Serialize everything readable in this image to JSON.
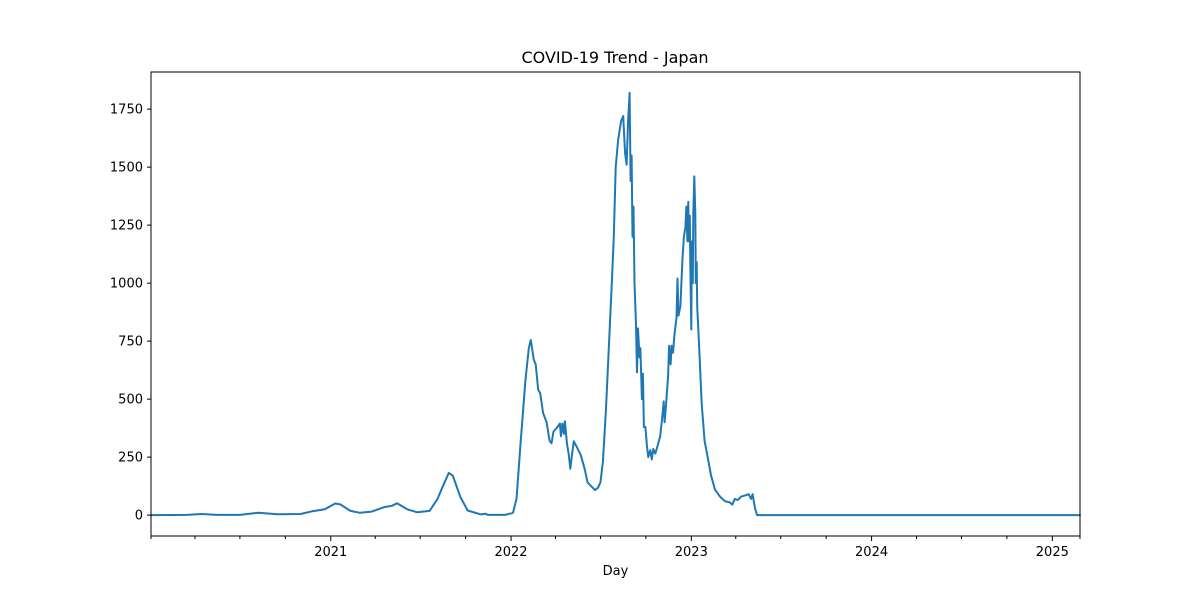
{
  "chart_data": {
    "type": "line",
    "title": "COVID-19 Trend - Japan",
    "xlabel": "Day",
    "ylabel": "",
    "x_axis": "date",
    "xlim": [
      "2020-01-03",
      "2025-02-26"
    ],
    "ylim": [
      -90,
      1910
    ],
    "grid": false,
    "legend": "none",
    "x_ticks": [
      {
        "date": "2021-01-01",
        "label": "2021"
      },
      {
        "date": "2022-01-01",
        "label": "2022"
      },
      {
        "date": "2023-01-01",
        "label": "2023"
      },
      {
        "date": "2024-01-01",
        "label": "2024"
      },
      {
        "date": "2025-01-01",
        "label": "2025"
      }
    ],
    "x_minor_ticks": [
      "2020-01-03",
      "2020-04-01",
      "2020-07-01",
      "2020-10-01",
      "2021-04-01",
      "2021-07-01",
      "2021-10-01",
      "2022-04-01",
      "2022-07-01",
      "2022-10-01",
      "2023-04-01",
      "2023-07-01",
      "2023-10-01",
      "2024-04-01",
      "2024-07-01",
      "2024-10-01",
      "2025-02-26"
    ],
    "y_ticks": [
      0,
      250,
      500,
      750,
      1000,
      1250,
      1500,
      1750
    ],
    "y_tick_labels": [
      "0",
      "250",
      "500",
      "750",
      "1000",
      "1250",
      "1500",
      "1750"
    ],
    "series": [
      {
        "color": "#1f77b4",
        "points": [
          [
            "2020-01-03",
            0
          ],
          [
            "2020-03-15",
            1
          ],
          [
            "2020-04-15",
            5
          ],
          [
            "2020-05-15",
            1
          ],
          [
            "2020-07-01",
            1
          ],
          [
            "2020-08-07",
            10
          ],
          [
            "2020-09-15",
            4
          ],
          [
            "2020-11-01",
            5
          ],
          [
            "2020-11-25",
            17
          ],
          [
            "2020-12-20",
            25
          ],
          [
            "2021-01-10",
            50
          ],
          [
            "2021-01-20",
            46
          ],
          [
            "2021-02-10",
            18
          ],
          [
            "2021-03-01",
            10
          ],
          [
            "2021-03-25",
            15
          ],
          [
            "2021-04-20",
            35
          ],
          [
            "2021-05-05",
            40
          ],
          [
            "2021-05-15",
            51
          ],
          [
            "2021-06-05",
            25
          ],
          [
            "2021-06-25",
            12
          ],
          [
            "2021-07-20",
            18
          ],
          [
            "2021-08-05",
            70
          ],
          [
            "2021-08-15",
            120
          ],
          [
            "2021-08-28",
            182
          ],
          [
            "2021-09-05",
            170
          ],
          [
            "2021-09-20",
            80
          ],
          [
            "2021-10-05",
            20
          ],
          [
            "2021-11-01",
            3
          ],
          [
            "2021-11-10",
            6
          ],
          [
            "2021-11-15",
            1
          ],
          [
            "2021-12-20",
            1
          ],
          [
            "2022-01-05",
            10
          ],
          [
            "2022-01-12",
            70
          ],
          [
            "2022-01-20",
            300
          ],
          [
            "2022-01-30",
            580
          ],
          [
            "2022-02-06",
            720
          ],
          [
            "2022-02-10",
            755
          ],
          [
            "2022-02-16",
            670
          ],
          [
            "2022-02-20",
            650
          ],
          [
            "2022-02-25",
            540
          ],
          [
            "2022-03-01",
            525
          ],
          [
            "2022-03-07",
            440
          ],
          [
            "2022-03-14",
            400
          ],
          [
            "2022-03-20",
            320
          ],
          [
            "2022-03-24",
            310
          ],
          [
            "2022-03-28",
            360
          ],
          [
            "2022-04-05",
            380
          ],
          [
            "2022-04-10",
            395
          ],
          [
            "2022-04-12",
            340
          ],
          [
            "2022-04-15",
            395
          ],
          [
            "2022-04-18",
            350
          ],
          [
            "2022-04-20",
            405
          ],
          [
            "2022-04-24",
            310
          ],
          [
            "2022-04-28",
            260
          ],
          [
            "2022-05-01",
            200
          ],
          [
            "2022-05-05",
            270
          ],
          [
            "2022-05-08",
            318
          ],
          [
            "2022-05-15",
            290
          ],
          [
            "2022-05-22",
            260
          ],
          [
            "2022-05-30",
            200
          ],
          [
            "2022-06-05",
            140
          ],
          [
            "2022-06-12",
            125
          ],
          [
            "2022-06-20",
            108
          ],
          [
            "2022-06-26",
            118
          ],
          [
            "2022-07-01",
            140
          ],
          [
            "2022-07-06",
            230
          ],
          [
            "2022-07-12",
            450
          ],
          [
            "2022-07-18",
            720
          ],
          [
            "2022-07-24",
            1000
          ],
          [
            "2022-07-28",
            1200
          ],
          [
            "2022-08-01",
            1500
          ],
          [
            "2022-08-06",
            1620
          ],
          [
            "2022-08-12",
            1700
          ],
          [
            "2022-08-16",
            1720
          ],
          [
            "2022-08-20",
            1560
          ],
          [
            "2022-08-23",
            1510
          ],
          [
            "2022-08-26",
            1700
          ],
          [
            "2022-08-29",
            1820
          ],
          [
            "2022-08-31",
            1440
          ],
          [
            "2022-09-02",
            1550
          ],
          [
            "2022-09-04",
            1200
          ],
          [
            "2022-09-06",
            1330
          ],
          [
            "2022-09-08",
            1000
          ],
          [
            "2022-09-11",
            820
          ],
          [
            "2022-09-13",
            615
          ],
          [
            "2022-09-15",
            805
          ],
          [
            "2022-09-18",
            680
          ],
          [
            "2022-09-20",
            720
          ],
          [
            "2022-09-23",
            500
          ],
          [
            "2022-09-25",
            610
          ],
          [
            "2022-09-27",
            380
          ],
          [
            "2022-09-30",
            380
          ],
          [
            "2022-10-03",
            300
          ],
          [
            "2022-10-06",
            250
          ],
          [
            "2022-10-10",
            280
          ],
          [
            "2022-10-13",
            240
          ],
          [
            "2022-10-16",
            285
          ],
          [
            "2022-10-20",
            265
          ],
          [
            "2022-10-25",
            300
          ],
          [
            "2022-10-30",
            340
          ],
          [
            "2022-11-03",
            420
          ],
          [
            "2022-11-06",
            490
          ],
          [
            "2022-11-08",
            400
          ],
          [
            "2022-11-11",
            480
          ],
          [
            "2022-11-15",
            600
          ],
          [
            "2022-11-17",
            730
          ],
          [
            "2022-11-20",
            650
          ],
          [
            "2022-11-22",
            730
          ],
          [
            "2022-11-25",
            700
          ],
          [
            "2022-11-28",
            780
          ],
          [
            "2022-12-02",
            850
          ],
          [
            "2022-12-04",
            1020
          ],
          [
            "2022-12-06",
            860
          ],
          [
            "2022-12-10",
            900
          ],
          [
            "2022-12-14",
            1100
          ],
          [
            "2022-12-17",
            1200
          ],
          [
            "2022-12-20",
            1240
          ],
          [
            "2022-12-22",
            1330
          ],
          [
            "2022-12-24",
            1180
          ],
          [
            "2022-12-26",
            1350
          ],
          [
            "2022-12-27",
            1180
          ],
          [
            "2022-12-29",
            1290
          ],
          [
            "2022-12-30",
            1080
          ],
          [
            "2023-01-01",
            800
          ],
          [
            "2023-01-02",
            1180
          ],
          [
            "2023-01-04",
            1000
          ],
          [
            "2023-01-05",
            1300
          ],
          [
            "2023-01-07",
            1460
          ],
          [
            "2023-01-09",
            1300
          ],
          [
            "2023-01-10",
            1000
          ],
          [
            "2023-01-12",
            1090
          ],
          [
            "2023-01-13",
            900
          ],
          [
            "2023-01-17",
            720
          ],
          [
            "2023-01-22",
            480
          ],
          [
            "2023-01-28",
            320
          ],
          [
            "2023-02-04",
            240
          ],
          [
            "2023-02-10",
            170
          ],
          [
            "2023-02-18",
            110
          ],
          [
            "2023-02-28",
            80
          ],
          [
            "2023-03-10",
            60
          ],
          [
            "2023-03-20",
            55
          ],
          [
            "2023-03-25",
            45
          ],
          [
            "2023-03-30",
            70
          ],
          [
            "2023-04-05",
            65
          ],
          [
            "2023-04-12",
            80
          ],
          [
            "2023-04-20",
            85
          ],
          [
            "2023-04-27",
            90
          ],
          [
            "2023-05-02",
            70
          ],
          [
            "2023-05-05",
            90
          ],
          [
            "2023-05-10",
            30
          ],
          [
            "2023-05-14",
            0
          ],
          [
            "2025-02-26",
            0
          ]
        ]
      }
    ]
  }
}
